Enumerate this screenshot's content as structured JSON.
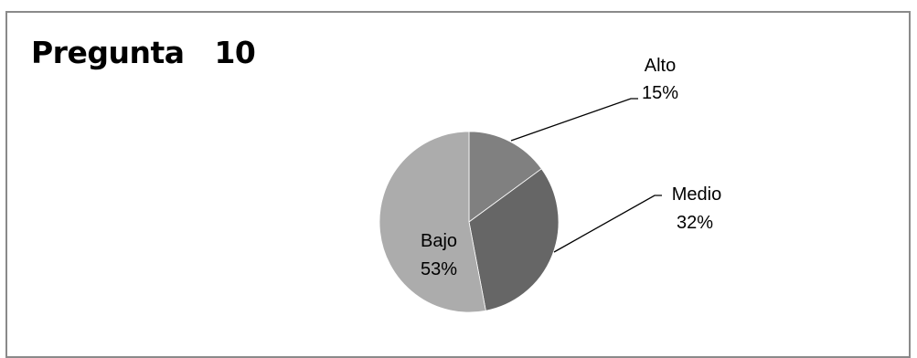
{
  "chart_data": {
    "type": "pie",
    "title": "Pregunta   10",
    "categories": [
      "Alto",
      "Medio",
      "Bajo"
    ],
    "values": [
      15,
      32,
      53
    ],
    "value_labels": [
      "15%",
      "32%",
      "53%"
    ],
    "colors": [
      "#808080",
      "#666666",
      "#acacac"
    ]
  }
}
